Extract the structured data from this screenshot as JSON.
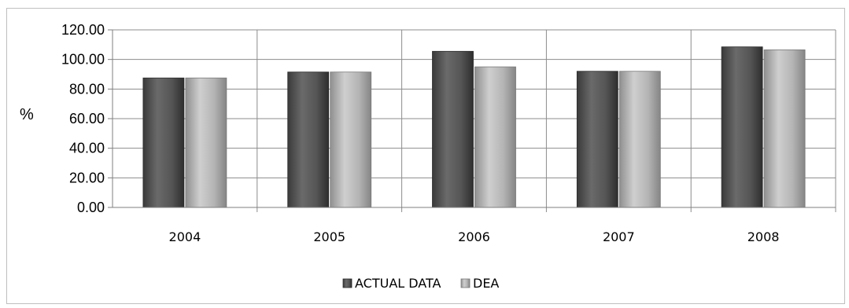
{
  "chart_data": {
    "type": "bar",
    "title": "",
    "xlabel": "",
    "ylabel": "%",
    "categories": [
      "2004",
      "2005",
      "2006",
      "2007",
      "2008"
    ],
    "series": [
      {
        "name": "ACTUAL DATA",
        "values": [
          87.5,
          91.5,
          105.5,
          92.0,
          108.5
        ],
        "color": "#555555"
      },
      {
        "name": "DEA",
        "values": [
          87.5,
          91.5,
          95.0,
          92.0,
          106.5
        ],
        "color": "#b0b0b0"
      }
    ],
    "ylim": [
      0,
      120
    ],
    "yticks": [
      "0.00",
      "20.00",
      "40.00",
      "60.00",
      "80.00",
      "100.00",
      "120.00"
    ],
    "grid": true,
    "legend_position": "bottom"
  }
}
